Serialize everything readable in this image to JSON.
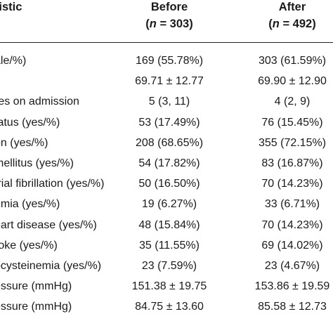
{
  "header": {
    "characteristic": "ristic",
    "before": {
      "title": "Before",
      "n_prefix": "(",
      "n_var": "n",
      "n_eq": " = 303)"
    },
    "after": {
      "title": "After",
      "n_prefix": "(",
      "n_var": "n",
      "n_eq": " = 492)"
    }
  },
  "rows": [
    {
      "label": "ale/%)",
      "before": "169 (55.78%)",
      "after": "303 (61.59%)"
    },
    {
      "label": "",
      "before": "69.71 ± 12.77",
      "after": "69.90 ± 12.90"
    },
    {
      "label": "res on admission",
      "before": "5 (3, 11)",
      "after": "4 (2, 9)"
    },
    {
      "label": "tatus (yes/%)",
      "before": "53 (17.49%)",
      "after": "76 (15.45%)"
    },
    {
      "label": "on (yes/%)",
      "before": "208 (68.65%)",
      "after": "355 (72.15%)"
    },
    {
      "label": "mellitus (yes/%)",
      "before": "54 (17.82%)",
      "after": "83 (16.87%)"
    },
    {
      "label": "trial fibrillation (yes/%)",
      "before": "50 (16.50%)",
      "after": "70 (14.23%)"
    },
    {
      "label": "emia (yes/%)",
      "before": "19 (6.27%)",
      "after": "33 (6.71%)"
    },
    {
      "label": "eart disease (yes/%)",
      "before": "48 (15.84%)",
      "after": "70 (14.23%)"
    },
    {
      "label": "roke (yes/%)",
      "before": "35 (11.55%)",
      "after": "69 (14.02%)"
    },
    {
      "label": "ocysteinemia (yes/%)",
      "before": "23 (7.59%)",
      "after": "23 (4.67%)"
    },
    {
      "label": "essure (mmHg)",
      "before": "151.38 ± 19.75",
      "after": "153.86 ± 19.59"
    },
    {
      "label": "essure (mmHg)",
      "before": "84.75 ± 13.60",
      "after": "85.58 ± 12.73"
    }
  ]
}
